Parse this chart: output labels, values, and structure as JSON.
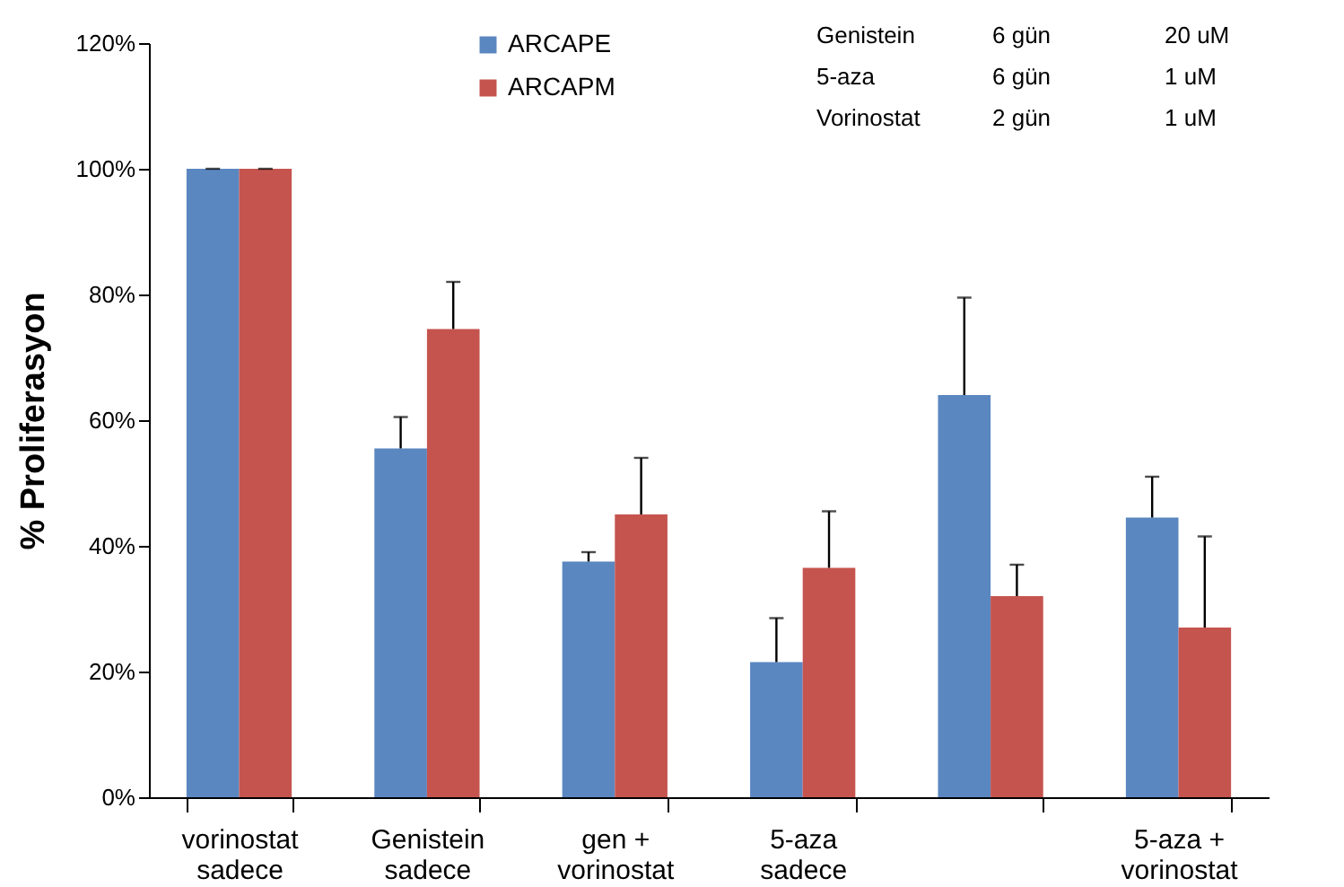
{
  "chart_data": {
    "type": "bar",
    "ylabel": "% Proliferasyon",
    "categories": [
      "vorinostat\nsadece",
      "Genistein\nsadece",
      "gen +\nvorinostat",
      "5-aza\nsadece",
      null,
      "5-aza +\nvorinostat"
    ],
    "series": [
      {
        "name": "ARCAPE",
        "color": "#5b87c1",
        "values": [
          100,
          55.5,
          37.5,
          21.5,
          64,
          44.5
        ],
        "errors": [
          [
            100,
            100
          ],
          [
            55.5,
            60.5
          ],
          [
            37.5,
            39
          ],
          [
            21.5,
            28.5
          ],
          [
            64,
            79.5
          ],
          [
            44.5,
            51
          ]
        ]
      },
      {
        "name": "ARCAPM",
        "color": "#c5544f",
        "values": [
          100,
          74.5,
          45,
          36.5,
          32,
          27
        ],
        "errors": [
          [
            100,
            100
          ],
          [
            74.5,
            82
          ],
          [
            45,
            54
          ],
          [
            36.5,
            45.5
          ],
          [
            32,
            37
          ],
          [
            27,
            41.5
          ]
        ]
      }
    ],
    "ylim": [
      0,
      120
    ],
    "yticks": [
      {
        "value": 0,
        "label": "0%"
      },
      {
        "value": 20,
        "label": "20%"
      },
      {
        "value": 40,
        "label": "40%"
      },
      {
        "value": 60,
        "label": "60%"
      },
      {
        "value": 80,
        "label": "80%"
      },
      {
        "value": 100,
        "label": "100%"
      },
      {
        "value": 120,
        "label": "120%"
      }
    ],
    "grid": false,
    "legend": "top",
    "annotations": [
      "Genistein\t6 gün\t20 uM",
      "5-aza\t6 gün\t1 uM",
      "Vorinostat\t2 gün\t1 uM"
    ]
  }
}
